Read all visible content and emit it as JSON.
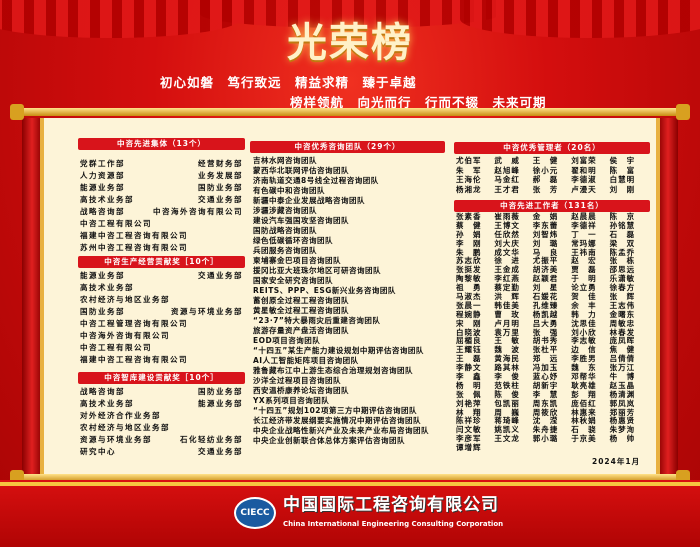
{
  "header": {
    "title": "光荣榜",
    "slogan1": "初心如磐　笃行致远　精益求精　臻于卓越",
    "slogan2": "榜样领航　向光而行　行而不辍　未来可期"
  },
  "colors": {
    "primary_red": "#d8141b",
    "panel": "#fdf4d8",
    "gold": "#f6c640"
  },
  "left": {
    "groups": [
      {
        "title": "中咨先进集体（13个）",
        "rows": [
          {
            "left": "党群工作部",
            "right": "经营财务部"
          },
          {
            "left": "人力资源部",
            "right": "业务发展部"
          },
          {
            "left": "能源业务部",
            "right": "国防业务部"
          },
          {
            "left": "高技术业务部",
            "right": "交通业务部"
          },
          {
            "left": "战略咨询部",
            "right": "中咨海外咨询有限公司"
          },
          {
            "left": "中咨工程有限公司",
            "right": ""
          },
          {
            "left": "福建中咨工程咨询有限公司",
            "right": ""
          },
          {
            "left": "苏州中咨工程咨询有限公司",
            "right": ""
          }
        ]
      },
      {
        "title": "中咨生产经营贡献奖［10个］",
        "rows": [
          {
            "left": "能源业务部",
            "right": "交通业务部"
          },
          {
            "left": "高技术业务部",
            "right": ""
          },
          {
            "left": "农村经济与地区业务部",
            "right": ""
          },
          {
            "left": "国防业务部",
            "right": "资源与环境业务部"
          },
          {
            "left": "中咨工程管理咨询有限公司",
            "right": ""
          },
          {
            "left": "中咨海外咨询有限公司",
            "right": ""
          },
          {
            "left": "中咨工程有限公司",
            "right": ""
          },
          {
            "left": "福建中咨工程咨询有限公司",
            "right": ""
          }
        ]
      },
      {
        "title": "中咨智库建设贡献奖［10个］",
        "rows": [
          {
            "left": "战略咨询部",
            "right": "国防业务部"
          },
          {
            "left": "高技术业务部",
            "right": "能源业务部"
          },
          {
            "left": "对外经济合作业务部",
            "right": ""
          },
          {
            "left": "农村经济与地区业务部",
            "right": ""
          },
          {
            "left": "资源与环境业务部",
            "right": "石化轻纺业务部"
          },
          {
            "left": "研究中心",
            "right": "交通业务部"
          }
        ]
      }
    ]
  },
  "middle": {
    "title": "中咨优秀咨询团队（29个）",
    "items": [
      "吉林水网咨询团队",
      "蒙西华北联网评估咨询团队",
      "济南轨道交通8号线全过程咨询团队",
      "有色碳中和咨询团队",
      "新疆中泰企业发展战略咨询团队",
      "涉疆涉藏咨询团队",
      "建设汽车强国攻坚咨询团队",
      "国防战略咨询团队",
      "绿色低碳循环咨询团队",
      "兵团服务咨询团队",
      "柬埔寨金巴项目咨询团队",
      "援冈比亚大班珠尔地区可研咨询团队",
      "国家安全研究咨询团队",
      "REITS、PPP、ESG新兴业务咨询团队",
      "蓄创原全过程工程咨询团队",
      "黄星敏全过程工程咨询团队",
      "“23·7”特大暴雨灾后重建咨询团队",
      "旅游存量资产盘活咨询团队",
      "EOD项目咨询团队",
      "“十四五”某生产能力建设规划中期评估咨询团队",
      "AI人工智能矩阵项目咨询团队",
      "雅鲁藏布江中上游生态综合治理规划咨询团队",
      "沙洋全过程项目咨询团队",
      "西安温桥康养论坛咨询团队",
      "YX系列项目咨询团队",
      "“十四五”规划102项第三方中期评估咨询团队",
      "长江经济带发展纲要实施情况中期评估咨询团队",
      "中央企业战略性新兴产业及未来产业布局咨询团队",
      "中央企业创新联合体总体方案评估咨询团队"
    ]
  },
  "right": {
    "managers": {
      "title": "中咨优秀管理者（20名）",
      "names": [
        "尤伯军",
        "武　威",
        "王　健",
        "刘富荣",
        "侯　宇",
        "朱　军",
        "赵旭峰",
        "徐小元",
        "翟和明",
        "陈　富",
        "王海伦",
        "马金红",
        "郝　磊",
        "李德淑",
        "白慧明",
        "杨湘龙",
        "王才君",
        "张　芳",
        "卢漫天",
        "刘　刚"
      ]
    },
    "workers": {
      "title": "中咨先进工作者（131名）",
      "names": [
        "张素香",
        "崔雨薇",
        "金　娟",
        "赵晨晨",
        "陈　京",
        "蔡　健",
        "王博文",
        "李东蕾",
        "李德祥",
        "孙铭慧",
        "孙　娟",
        "任欣然",
        "刘智炜",
        "丁　一",
        "石　磊",
        "李　刚",
        "刘大庆",
        "刘　璐",
        "常玛娜",
        "梁　双",
        "朱　鹏",
        "成文华",
        "马　良",
        "王祎南",
        "陈孟乔",
        "苏志欣",
        "徐　进",
        "尤振平",
        "赵　宏",
        "张　栋",
        "张挺发",
        "王金成",
        "胡济美",
        "贾　磊",
        "邵思远",
        "陶黎敏",
        "李红燕",
        "赵颖君",
        "于　明",
        "乐潇敏",
        "祖　勇",
        "蔡定勤",
        "刘　星",
        "论立勇",
        "徐春方",
        "马淑杰",
        "洪　辉",
        "石媛花",
        "贺　佳",
        "张　辉",
        "张晨一",
        "韩佳美",
        "孔维臻",
        "余　丰",
        "王志伟",
        "程婉静",
        "曹　玫",
        "杨凯越",
        "韩　力",
        "金曙东",
        "宋　刚",
        "卢月明",
        "吕大勇",
        "沈思佳",
        "周敏忠",
        "白晓波",
        "袁万里",
        "张　强",
        "刘小欣",
        "林春发",
        "屈楣良",
        "王　敏",
        "胡书秀",
        "李志敏",
        "庞凤晖",
        "王耀钰",
        "魏　波",
        "张杜平",
        "边　信",
        "焦　健",
        "王　磊",
        "黄海民",
        "郑　远",
        "李胜男",
        "吕倩倩",
        "李静文",
        "路其林",
        "冯加玉",
        "魏　东",
        "张万江",
        "李　鑫",
        "李　俊",
        "蓝心妤",
        "邓帮华",
        "牛　博",
        "杨　明",
        "范铁柱",
        "胡新宇",
        "耿亮雄",
        "赵玉晶",
        "张　佩",
        "陈　俊",
        "李　慧",
        "彭　翔",
        "杨清渊",
        "刘艳萍",
        "包凯丽",
        "周东凯",
        "庞佰红",
        "郭凤岚",
        "林　翔",
        "周　巍",
        "周筱欣",
        "林惠来",
        "郑丽芳",
        "陈祥珍",
        "蒋琦峰",
        "沈　滢",
        "林秋娟",
        "杨惠贤",
        "闫文敏",
        "姚凯义",
        "朱舟捷",
        "石　骁",
        "朱梦洵",
        "李彦军",
        "王文龙",
        "郭小璐",
        "于京美",
        "杨　帅",
        "谭增辉"
      ]
    },
    "date": "2024年1月"
  },
  "footer": {
    "logo_text": "CIECC",
    "company_cn": "中国国际工程咨询有限公司",
    "company_en": "China International Engineering Consulting Corporation"
  }
}
